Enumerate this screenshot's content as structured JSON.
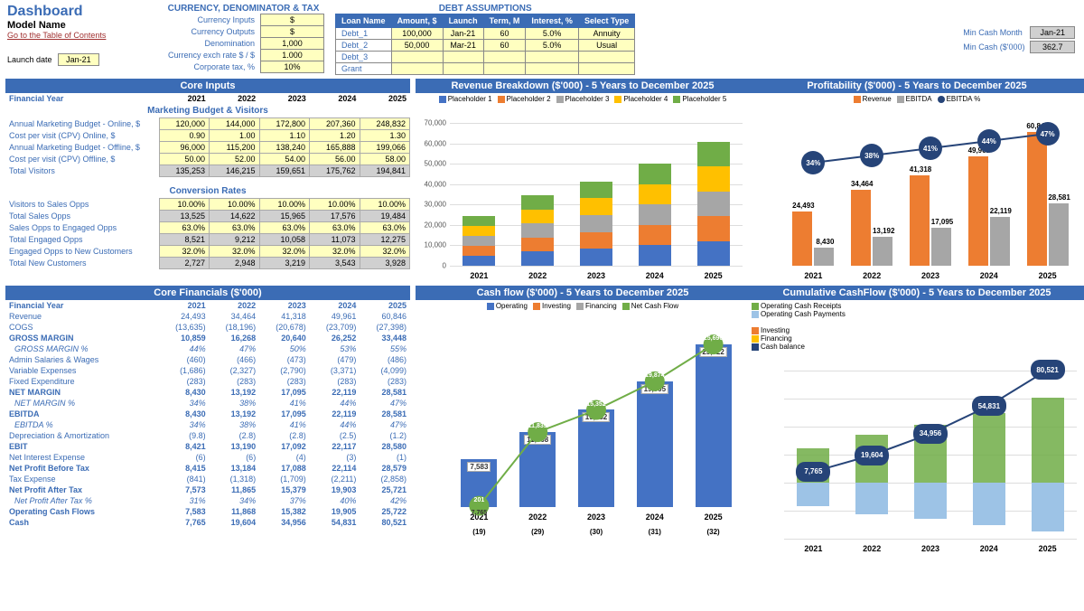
{
  "header": {
    "title": "Dashboard",
    "model": "Model Name",
    "toc": "Go to the Table of Contents",
    "launch_label": "Launch date",
    "launch_val": "Jan-21"
  },
  "currency_block": {
    "title": "CURRENCY, DENOMINATOR & TAX",
    "rows": [
      {
        "label": "Currency Inputs",
        "val": "$"
      },
      {
        "label": "Currency Outputs",
        "val": "$"
      },
      {
        "label": "Denomination",
        "val": "1,000"
      },
      {
        "label": "Currency exch rate $ / $",
        "val": "1.000"
      },
      {
        "label": "Corporate tax, %",
        "val": "10%"
      }
    ]
  },
  "debt_block": {
    "title": "DEBT ASSUMPTIONS",
    "cols": [
      "Loan Name",
      "Amount, $",
      "Launch",
      "Term, M",
      "Interest, %",
      "Select Type"
    ],
    "rows": [
      [
        "Debt_1",
        "100,000",
        "Jan-21",
        "60",
        "5.0%",
        "Annuity"
      ],
      [
        "Debt_2",
        "50,000",
        "Mar-21",
        "60",
        "5.0%",
        "Usual"
      ],
      [
        "Debt_3",
        "",
        "",
        "",
        "",
        ""
      ],
      [
        "Grant",
        "",
        "",
        "",
        "",
        ""
      ]
    ]
  },
  "min_cash": {
    "month_label": "Min Cash Month",
    "month_val": "Jan-21",
    "amt_label": "Min Cash ($'000)",
    "amt_val": "362.7"
  },
  "years": [
    "2021",
    "2022",
    "2023",
    "2024",
    "2025"
  ],
  "core_inputs_title": "Core Inputs",
  "marketing_hdr": "Marketing Budget & Visitors",
  "conversion_hdr": "Conversion Rates",
  "marketing_rows": [
    {
      "label": "Annual Marketing Budget - Online, $",
      "vals": [
        "120,000",
        "144,000",
        "172,800",
        "207,360",
        "248,832"
      ],
      "style": "yellow"
    },
    {
      "label": "Cost per visit (CPV) Online, $",
      "vals": [
        "0.90",
        "1.00",
        "1.10",
        "1.20",
        "1.30"
      ],
      "style": "yellow"
    },
    {
      "label": "Annual Marketing Budget - Offline, $",
      "vals": [
        "96,000",
        "115,200",
        "138,240",
        "165,888",
        "199,066"
      ],
      "style": "yellow"
    },
    {
      "label": "Cost per visit (CPV) Offline, $",
      "vals": [
        "50.00",
        "52.00",
        "54.00",
        "56.00",
        "58.00"
      ],
      "style": "yellow"
    },
    {
      "label": "Total Visitors",
      "vals": [
        "135,253",
        "146,215",
        "159,651",
        "175,762",
        "194,841"
      ],
      "style": "grey"
    }
  ],
  "conversion_rows": [
    {
      "label": "Visitors to Sales Opps",
      "vals": [
        "10.00%",
        "10.00%",
        "10.00%",
        "10.00%",
        "10.00%"
      ],
      "style": "yellow"
    },
    {
      "label": "Total Sales Opps",
      "vals": [
        "13,525",
        "14,622",
        "15,965",
        "17,576",
        "19,484"
      ],
      "style": "grey"
    },
    {
      "label": "Sales Opps to Engaged Opps",
      "vals": [
        "63.0%",
        "63.0%",
        "63.0%",
        "63.0%",
        "63.0%"
      ],
      "style": "yellow"
    },
    {
      "label": "Total Engaged Opps",
      "vals": [
        "8,521",
        "9,212",
        "10,058",
        "11,073",
        "12,275"
      ],
      "style": "grey"
    },
    {
      "label": "Engaged Opps to New Customers",
      "vals": [
        "32.0%",
        "32.0%",
        "32.0%",
        "32.0%",
        "32.0%"
      ],
      "style": "yellow"
    },
    {
      "label": "Total New Customers",
      "vals": [
        "2,727",
        "2,948",
        "3,219",
        "3,543",
        "3,928"
      ],
      "style": "grey"
    }
  ],
  "core_fin_title": "Core Financials ($'000)",
  "fin_rows": [
    {
      "label": "Revenue",
      "vals": [
        "24,493",
        "34,464",
        "41,318",
        "49,961",
        "60,846"
      ]
    },
    {
      "label": "COGS",
      "vals": [
        "(13,635)",
        "(18,196)",
        "(20,678)",
        "(23,709)",
        "(27,398)"
      ]
    },
    {
      "label": "GROSS MARGIN",
      "vals": [
        "10,859",
        "16,268",
        "20,640",
        "26,252",
        "33,448"
      ],
      "bold": true
    },
    {
      "label": "GROSS MARGIN %",
      "vals": [
        "44%",
        "47%",
        "50%",
        "53%",
        "55%"
      ],
      "italic": true
    },
    {
      "label": "Admin Salaries & Wages",
      "vals": [
        "(460)",
        "(466)",
        "(473)",
        "(479)",
        "(486)"
      ]
    },
    {
      "label": "Variable Expenses",
      "vals": [
        "(1,686)",
        "(2,327)",
        "(2,790)",
        "(3,371)",
        "(4,099)"
      ]
    },
    {
      "label": "Fixed Expenditure",
      "vals": [
        "(283)",
        "(283)",
        "(283)",
        "(283)",
        "(283)"
      ]
    },
    {
      "label": "NET MARGIN",
      "vals": [
        "8,430",
        "13,192",
        "17,095",
        "22,119",
        "28,581"
      ],
      "bold": true
    },
    {
      "label": "NET MARGIN %",
      "vals": [
        "34%",
        "38%",
        "41%",
        "44%",
        "47%"
      ],
      "italic": true
    },
    {
      "label": "EBITDA",
      "vals": [
        "8,430",
        "13,192",
        "17,095",
        "22,119",
        "28,581"
      ],
      "bold": true
    },
    {
      "label": "EBITDA %",
      "vals": [
        "34%",
        "38%",
        "41%",
        "44%",
        "47%"
      ],
      "italic": true
    },
    {
      "label": "Depreciation & Amortization",
      "vals": [
        "(9.8)",
        "(2.8)",
        "(2.8)",
        "(2.5)",
        "(1.2)"
      ]
    },
    {
      "label": "EBIT",
      "vals": [
        "8,421",
        "13,190",
        "17,092",
        "22,117",
        "28,580"
      ],
      "bold": true
    },
    {
      "label": "Net Interest Expense",
      "vals": [
        "(6)",
        "(6)",
        "(4)",
        "(3)",
        "(1)"
      ]
    },
    {
      "label": "Net Profit Before Tax",
      "vals": [
        "8,415",
        "13,184",
        "17,088",
        "22,114",
        "28,579"
      ],
      "bold": true
    },
    {
      "label": "Tax Expense",
      "vals": [
        "(841)",
        "(1,318)",
        "(1,709)",
        "(2,211)",
        "(2,858)"
      ]
    },
    {
      "label": "Net Profit After Tax",
      "vals": [
        "7,573",
        "11,865",
        "15,379",
        "19,903",
        "25,721"
      ],
      "bold": true
    },
    {
      "label": "Net Profit After Tax %",
      "vals": [
        "31%",
        "34%",
        "37%",
        "40%",
        "42%"
      ],
      "italic": true
    },
    {
      "label": "Operating Cash Flows",
      "vals": [
        "7,583",
        "11,868",
        "15,382",
        "19,905",
        "25,722"
      ],
      "bold": true
    },
    {
      "label": "Cash",
      "vals": [
        "7,765",
        "19,604",
        "34,956",
        "54,831",
        "80,521"
      ],
      "bold": true
    }
  ],
  "rev_chart": {
    "title": "Revenue Breakdown ($'000) - 5 Years to December 2025",
    "ymax": 70000,
    "ystep": 10000,
    "legend": [
      "Placeholder 1",
      "Placeholder 2",
      "Placeholder 3",
      "Placeholder 4",
      "Placeholder 5"
    ],
    "legend_colors": [
      "#4472c4",
      "#ed7d31",
      "#a6a6a6",
      "#ffc000",
      "#70ad47"
    ],
    "totals": [
      24493,
      34464,
      41318,
      49961,
      60846
    ],
    "stacks": [
      [
        4899,
        4899,
        4899,
        4899,
        4899
      ],
      [
        6893,
        6893,
        6893,
        6893,
        6893
      ],
      [
        8264,
        8264,
        8264,
        8264,
        8264
      ],
      [
        9992,
        9992,
        9992,
        9992,
        9992
      ],
      [
        12169,
        12169,
        12169,
        12169,
        12169
      ]
    ]
  },
  "prof_chart": {
    "title": "Profitability ($'000) - 5 Years to December 2025",
    "legend": [
      "Revenue",
      "EBITDA",
      "EBITDA %"
    ],
    "legend_colors": [
      "#ed7d31",
      "#a6a6a6",
      "#264478"
    ],
    "ymax": 65000,
    "revenue": [
      24493,
      34464,
      41318,
      49961,
      60846
    ],
    "ebitda": [
      8430,
      13192,
      17095,
      22119,
      28581
    ],
    "pct": [
      "34%",
      "38%",
      "41%",
      "44%",
      "47%"
    ],
    "rev_lbl": [
      "24,493",
      "34,464",
      "41,318",
      "49,961",
      "60,846"
    ],
    "eb_lbl": [
      "8,430",
      "13,192",
      "17,095",
      "22,119",
      "28,581"
    ]
  },
  "cash_chart": {
    "title": "Cash flow ($'000) - 5 Years to December 2025",
    "legend": [
      "Operating",
      "Investing",
      "Financing",
      "Net Cash Flow"
    ],
    "legend_colors": [
      "#4472c4",
      "#ed7d31",
      "#a6a6a6",
      "#70ad47"
    ],
    "ymax": 28000,
    "operating": [
      7583,
      11868,
      15382,
      19905,
      25722
    ],
    "investing": [
      -19,
      -29,
      -30,
      -31,
      -32
    ],
    "net": [
      201,
      11839,
      15352,
      19874,
      25690
    ],
    "op_lbl": [
      "7,583",
      "11,868",
      "15,382",
      "19,905",
      "25,722"
    ],
    "net_lbl": [
      "201",
      "11,839",
      "15,352",
      "19,874",
      "25,690"
    ],
    "inv_lbl": [
      "(19)",
      "(29)",
      "(30)",
      "(31)",
      "(32)"
    ],
    "extra_lbl": "7,765"
  },
  "cum_chart": {
    "title": "Cumulative CashFlow ($'000) - 5 Years to December 2025",
    "legend_top": [
      "Operating Cash Receipts",
      "Operating Cash Payments"
    ],
    "legend_top_colors": [
      "#70ad47",
      "#9dc3e6"
    ],
    "legend_bot": [
      "Investing",
      "Financing",
      "Cash balance"
    ],
    "legend_bot_colors": [
      "#ed7d31",
      "#ffc000",
      "#264478"
    ],
    "ymin": -40000,
    "ymax": 80000,
    "ystep": 20000,
    "receipts": [
      24493,
      34464,
      41318,
      49961,
      60846
    ],
    "payments": [
      -16910,
      -22596,
      -25936,
      -30056,
      -35124
    ],
    "cash": [
      7765,
      19604,
      34956,
      54831,
      80521
    ],
    "cash_lbl": [
      "7,765",
      "19,604",
      "34,956",
      "54,831",
      "80,521"
    ]
  }
}
